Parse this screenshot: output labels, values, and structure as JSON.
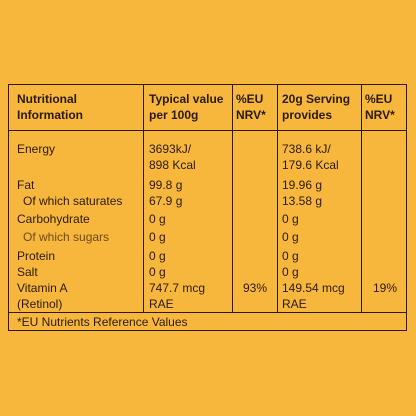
{
  "colors": {
    "background": "#f6b73c",
    "ink": "#2b1a0a"
  },
  "headers": {
    "nutritional_information": [
      "Nutritional",
      "Information"
    ],
    "typical_value": [
      "Typical value",
      "per 100g"
    ],
    "eu_nrv_1": [
      "%EU",
      "NRV*"
    ],
    "serving": [
      "20g Serving",
      "provides"
    ],
    "eu_nrv_2": [
      "%EU",
      "NRV*"
    ]
  },
  "rows": {
    "energy": {
      "label": "Energy",
      "per100g": [
        "3693kJ/",
        "898 Kcal"
      ],
      "serving": [
        "738.6 kJ/",
        "179.6 Kcal"
      ]
    },
    "fat": {
      "label": "Fat",
      "per100g": "99.8 g",
      "serving": "19.96 g"
    },
    "saturates": {
      "label": "Of which saturates",
      "per100g": "67.9 g",
      "serving": "13.58 g"
    },
    "carbohydrate": {
      "label": "Carbohydrate",
      "per100g": "0 g",
      "serving": "0 g"
    },
    "sugars": {
      "label": "Of which sugars",
      "per100g": "0 g",
      "serving": "0 g"
    },
    "protein": {
      "label": "Protein",
      "per100g": "0 g",
      "serving": "0 g"
    },
    "salt": {
      "label": "Salt",
      "per100g": "0 g",
      "serving": "0 g"
    },
    "vitamin_a": {
      "label": [
        "Vitamin A",
        "(Retinol)"
      ],
      "per100g": [
        "747.7 mcg",
        "RAE"
      ],
      "nrv1": "93%",
      "serving": [
        "149.54 mcg",
        "RAE"
      ],
      "nrv2": "19%"
    }
  },
  "footnote": "*EU Nutrients Reference Values"
}
